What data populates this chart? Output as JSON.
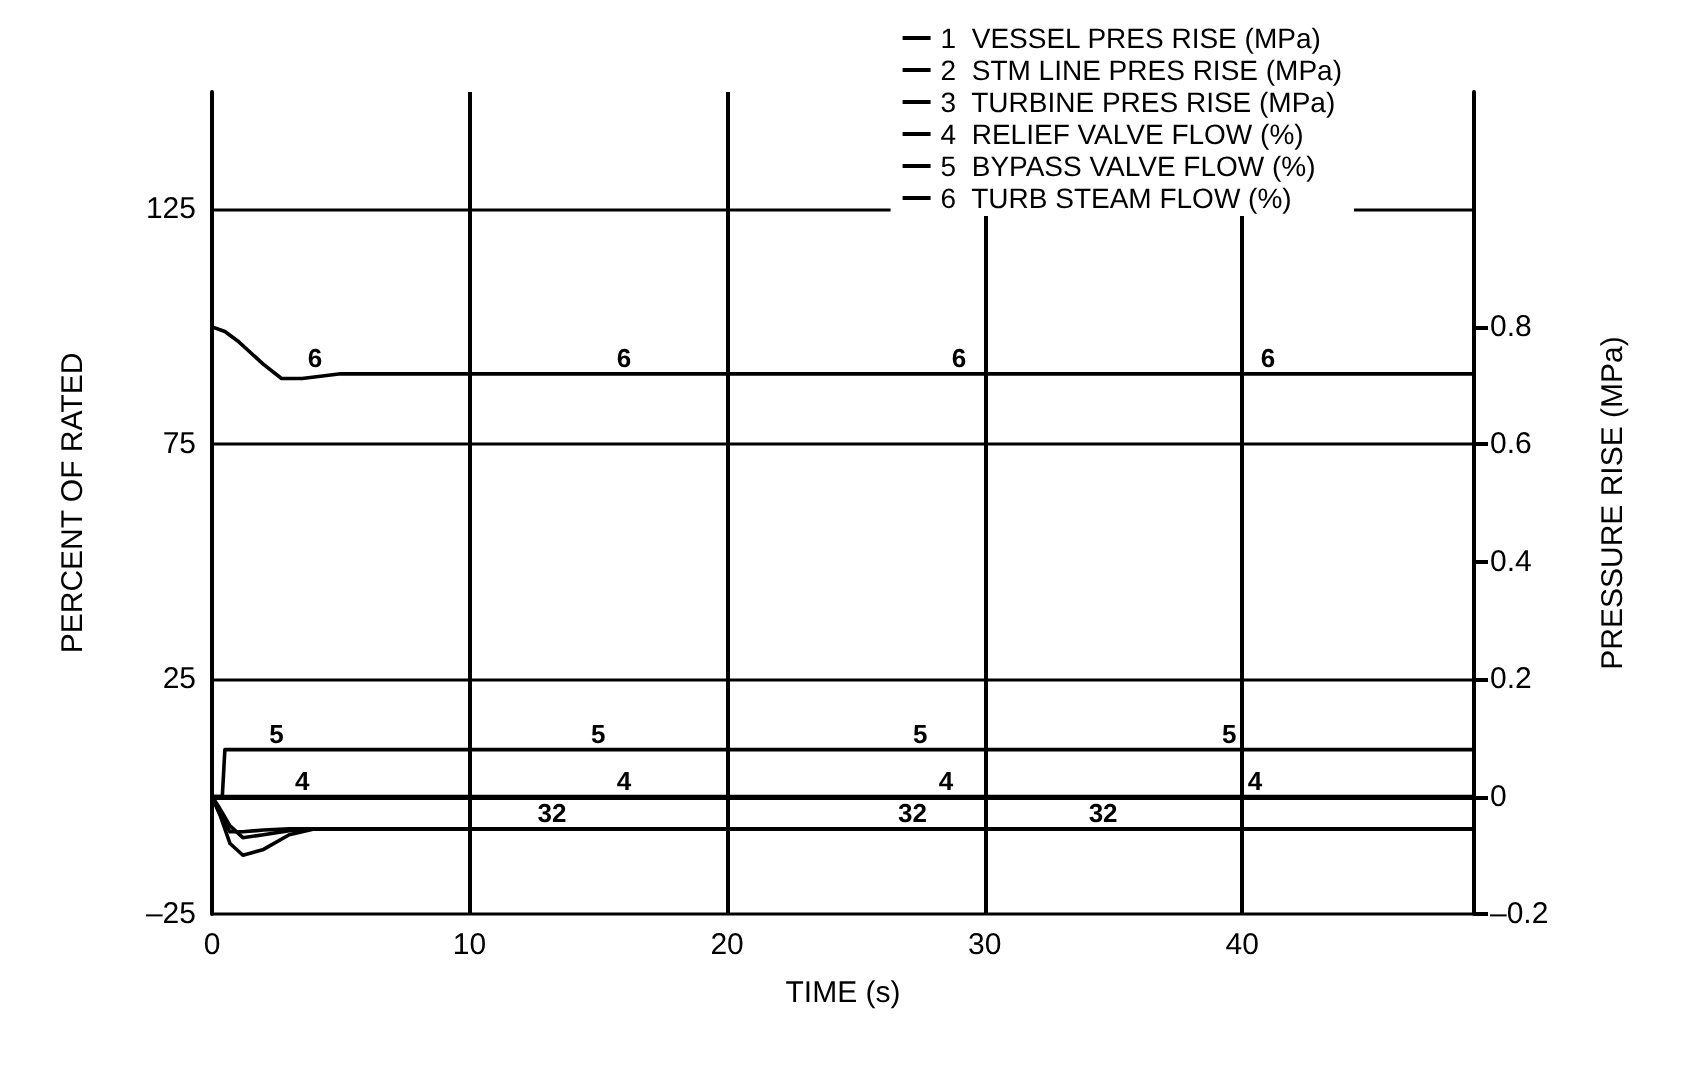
{
  "chart_data": {
    "type": "line",
    "xlabel": "TIME (s)",
    "ylabel": "PERCENT OF RATED",
    "y2label": "PRESSURE RISE (MPa)",
    "xlim": [
      0,
      49
    ],
    "xticks": [
      0,
      10,
      20,
      30,
      40
    ],
    "ylim": [
      -25,
      150
    ],
    "yticks": [
      {
        "value": -25,
        "label": "–25"
      },
      25,
      75,
      125
    ],
    "y2lim": [
      -0.2,
      1.2
    ],
    "y2ticks": [
      {
        "value": -0.2,
        "label": "–0.2"
      },
      0,
      0.2,
      0.4,
      0.6,
      0.8
    ],
    "grid": true,
    "legend": "top right",
    "marker": "none",
    "line_style": "solid",
    "series": [
      {
        "name": "1  VESSEL PRES RISE (MPa)",
        "color": "#000000",
        "axis": "y2",
        "x": [
          0,
          0.3,
          0.7,
          1.2,
          2,
          3,
          4,
          6,
          10,
          49
        ],
        "values": [
          0,
          -0.03,
          -0.08,
          -0.1,
          -0.09,
          -0.065,
          -0.055,
          -0.055,
          -0.055,
          -0.055
        ]
      },
      {
        "name": "2  STM LINE PRES RISE (MPa)",
        "color": "#000000",
        "axis": "y2",
        "x": [
          0,
          0.3,
          0.7,
          1.2,
          2,
          3,
          4,
          6,
          10,
          49
        ],
        "values": [
          0,
          -0.02,
          -0.05,
          -0.07,
          -0.065,
          -0.058,
          -0.055,
          -0.055,
          -0.055,
          -0.055
        ]
      },
      {
        "name": "3  TURBINE PRES RISE (MPa)",
        "color": "#000000",
        "axis": "y2",
        "x": [
          0,
          0.3,
          0.7,
          1.2,
          2,
          3,
          4,
          6,
          10,
          49
        ],
        "values": [
          0,
          -0.03,
          -0.06,
          -0.06,
          -0.057,
          -0.055,
          -0.055,
          -0.055,
          -0.055,
          -0.055
        ]
      },
      {
        "name": "4  RELIEF VALVE FLOW (%)",
        "color": "#000000",
        "x": [
          0,
          49
        ],
        "values": [
          0,
          0
        ]
      },
      {
        "name": "5  BYPASS VALVE FLOW (%)",
        "color": "#000000",
        "x": [
          0,
          0.4,
          0.5,
          49
        ],
        "values": [
          0,
          0,
          10,
          10
        ]
      },
      {
        "name": "6  TURB STEAM FLOW (%)",
        "color": "#000000",
        "x": [
          0,
          0.5,
          1,
          2,
          2.7,
          3.5,
          5,
          10,
          49
        ],
        "values": [
          100,
          99,
          97,
          92,
          89,
          89,
          90,
          90,
          90
        ]
      }
    ],
    "annotations": [
      {
        "text": "6",
        "x": 4,
        "y": 90
      },
      {
        "text": "6",
        "x": 16,
        "y": 90
      },
      {
        "text": "6",
        "x": 29,
        "y": 90
      },
      {
        "text": "6",
        "x": 41,
        "y": 90
      },
      {
        "text": "5",
        "x": 2.5,
        "y": 10
      },
      {
        "text": "5",
        "x": 15,
        "y": 10
      },
      {
        "text": "5",
        "x": 27.5,
        "y": 10
      },
      {
        "text": "5",
        "x": 39.5,
        "y": 10
      },
      {
        "text": "4",
        "x": 3.5,
        "y": 0
      },
      {
        "text": "4",
        "x": 16,
        "y": 0
      },
      {
        "text": "4",
        "x": 28.5,
        "y": 0
      },
      {
        "text": "4",
        "x": 40.5,
        "y": 0
      },
      {
        "text": "32",
        "x": 13.2,
        "y": -6.9
      },
      {
        "text": "32",
        "x": 27.2,
        "y": -6.9
      },
      {
        "text": "32",
        "x": 34.6,
        "y": -6.9
      }
    ]
  }
}
